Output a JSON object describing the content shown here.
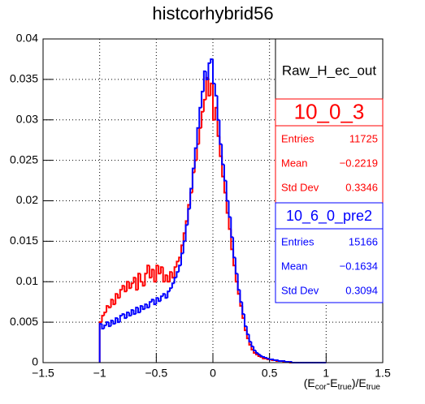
{
  "chart_data": {
    "type": "histogram",
    "title": "histcorhybrid56",
    "xlabel_parts": [
      "(E",
      "cor",
      "-E",
      "true",
      ")/E",
      "true"
    ],
    "bins": [
      -1,
      -0.98,
      -0.96,
      -0.94,
      -0.92,
      -0.9,
      -0.88,
      -0.86,
      -0.84,
      -0.82,
      -0.8,
      -0.78,
      -0.76,
      -0.74,
      -0.72,
      -0.7,
      -0.68,
      -0.66,
      -0.64,
      -0.62,
      -0.6,
      -0.58,
      -0.56,
      -0.54,
      -0.52,
      -0.5,
      -0.48,
      -0.46,
      -0.44,
      -0.42,
      -0.4,
      -0.38,
      -0.36,
      -0.34,
      -0.32,
      -0.3,
      -0.28,
      -0.26,
      -0.24,
      -0.22,
      -0.2,
      -0.18,
      -0.16,
      -0.14,
      -0.12,
      -0.1,
      -0.08,
      -0.06,
      -0.04,
      -0.02,
      0,
      0.02,
      0.04,
      0.06,
      0.08,
      0.1,
      0.12,
      0.14,
      0.16,
      0.18,
      0.2,
      0.22,
      0.24,
      0.26,
      0.28,
      0.3,
      0.32,
      0.34,
      0.36,
      0.38,
      0.4,
      0.42,
      0.44,
      0.46,
      0.48,
      0.5,
      0.52,
      0.54,
      0.56,
      0.58,
      0.6,
      0.62,
      0.64,
      0.66,
      0.68,
      0.7,
      0.72,
      0.74,
      0.76,
      0.78,
      0.8,
      0.82,
      0.84,
      0.86,
      0.88,
      0.9,
      0.92,
      0.94,
      0.96,
      0.98,
      1
    ],
    "series": [
      {
        "name": "10_0_3",
        "color": "#ff0000",
        "values": [
          0.005,
          0.0058,
          0.0062,
          0.007,
          0.0068,
          0.0078,
          0.0072,
          0.0085,
          0.008,
          0.009,
          0.0095,
          0.0088,
          0.01,
          0.0092,
          0.0098,
          0.0105,
          0.009,
          0.011,
          0.01,
          0.0095,
          0.011,
          0.012,
          0.0105,
          0.0115,
          0.01,
          0.012,
          0.011,
          0.0118,
          0.01,
          0.0108,
          0.01,
          0.0112,
          0.0105,
          0.0118,
          0.0125,
          0.013,
          0.0145,
          0.016,
          0.0175,
          0.0195,
          0.021,
          0.0235,
          0.025,
          0.027,
          0.029,
          0.031,
          0.0325,
          0.0352,
          0.033,
          0.0345,
          0.03,
          0.0315,
          0.028,
          0.0255,
          0.023,
          0.021,
          0.0185,
          0.0165,
          0.014,
          0.012,
          0.01,
          0.0085,
          0.007,
          0.0055,
          0.004,
          0.003,
          0.0022,
          0.0016,
          0.0012,
          0.001,
          0.0008,
          0.0007,
          0.0005,
          0.0005,
          0.0004,
          0.0004,
          0.0003,
          0.0003,
          0.0002,
          0.0002,
          0.0002,
          0.0001,
          0.0001,
          0.0001,
          0,
          0,
          0,
          0,
          0,
          0,
          0,
          0,
          0,
          0,
          0,
          0,
          0,
          0,
          0,
          0
        ],
        "stats": {
          "entries_label": "Entries",
          "entries": "11725",
          "mean_label": "Mean",
          "mean": "−0.2219",
          "std_label": "Std Dev",
          "std": "0.3346"
        }
      },
      {
        "name": "10_6_0_pre2",
        "color": "#0000ff",
        "values": [
          0.0048,
          0.0042,
          0.0046,
          0.005,
          0.0045,
          0.0052,
          0.0048,
          0.0055,
          0.005,
          0.0058,
          0.006,
          0.0055,
          0.0062,
          0.0058,
          0.0065,
          0.006,
          0.0068,
          0.0062,
          0.007,
          0.0066,
          0.0072,
          0.0068,
          0.0075,
          0.0078,
          0.0072,
          0.008,
          0.0076,
          0.0082,
          0.0085,
          0.008,
          0.0088,
          0.0092,
          0.0098,
          0.0105,
          0.0112,
          0.012,
          0.0135,
          0.015,
          0.017,
          0.019,
          0.0215,
          0.024,
          0.0265,
          0.029,
          0.0315,
          0.0335,
          0.036,
          0.035,
          0.037,
          0.0375,
          0.0345,
          0.033,
          0.03,
          0.027,
          0.0245,
          0.0225,
          0.02,
          0.018,
          0.0155,
          0.013,
          0.011,
          0.009,
          0.0075,
          0.006,
          0.0045,
          0.0035,
          0.0026,
          0.002,
          0.0015,
          0.0012,
          0.001,
          0.0008,
          0.0007,
          0.0006,
          0.0005,
          0.0004,
          0.0004,
          0.0003,
          0.0003,
          0.0002,
          0.0002,
          0.0002,
          0.0001,
          0.0001,
          0.0001,
          0,
          0,
          0,
          0,
          0,
          0,
          0,
          0,
          0,
          0,
          0,
          0,
          0,
          0,
          0
        ],
        "stats": {
          "entries_label": "Entries",
          "entries": "15166",
          "mean_label": "Mean",
          "mean": "−0.1634",
          "std_label": "Std Dev",
          "std": "0.3094"
        }
      }
    ],
    "stats_title": "Raw_H_ec_out",
    "xlim": [
      -1.5,
      1.5
    ],
    "xticks": [
      {
        "value": -1.5,
        "label": "−1.5"
      },
      {
        "value": -1,
        "label": "−1"
      },
      {
        "value": -0.5,
        "label": "−0.5"
      },
      0,
      0.5,
      1,
      1.5
    ],
    "ylim": [
      0,
      0.04
    ],
    "yticks": [
      0,
      0.005,
      0.01,
      0.015,
      0.02,
      0.025,
      0.03,
      0.035,
      0.04
    ],
    "grid": true
  }
}
